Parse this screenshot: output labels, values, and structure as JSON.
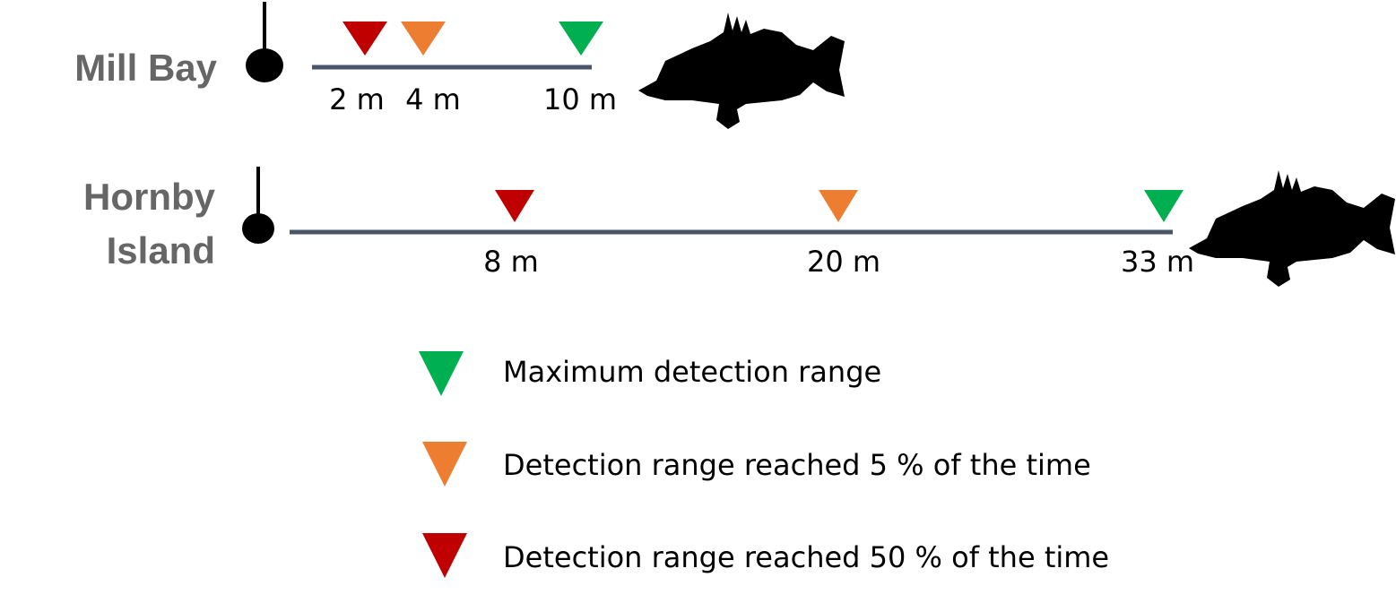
{
  "sites": [
    {
      "name": "Mill Bay",
      "ranges": [
        "2 m",
        "4 m",
        "10 m"
      ]
    },
    {
      "name": "Hornby Island",
      "ranges": [
        "8 m",
        "20 m",
        "33 m"
      ]
    }
  ],
  "legend": [
    "Maximum detection range",
    "Detection range reached 5 % of the time",
    "Detection range reached 50 % of the time"
  ]
}
